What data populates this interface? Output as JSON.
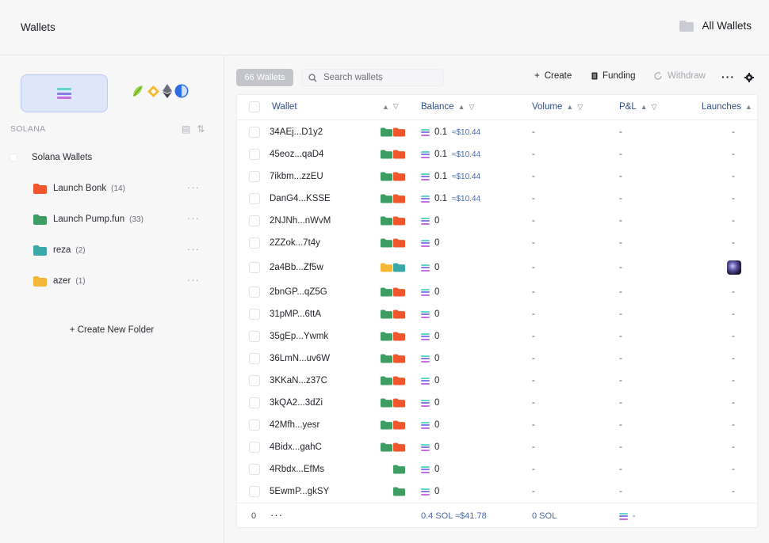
{
  "header": {
    "title": "Wallets",
    "all_wallets": "All Wallets"
  },
  "sidebar": {
    "chain_label": "SOLANA",
    "group_label": "Solana Wallets",
    "folders": [
      {
        "name": "Launch Bonk",
        "count": "(14)",
        "color": "#f0552c"
      },
      {
        "name": "Launch Pump.fun",
        "count": "(33)",
        "color": "#3d9d62"
      },
      {
        "name": "reza",
        "count": "(2)",
        "color": "#3aa7a8"
      },
      {
        "name": "azer",
        "count": "(1)",
        "color": "#f4b73a"
      }
    ],
    "create_folder": "+ Create New Folder"
  },
  "toolbar": {
    "count_badge": "66 Wallets",
    "search_placeholder": "Search wallets",
    "create": "Create",
    "funding": "Funding",
    "withdraw": "Withdraw"
  },
  "table": {
    "columns": {
      "wallet": "Wallet",
      "balance": "Balance",
      "volume": "Volume",
      "pnl": "P&L",
      "launches": "Launches"
    },
    "rows": [
      {
        "wallet": "34AEj...D1y2",
        "folders": [
          "#3d9d62",
          "#f0552c"
        ],
        "balance": "0.1",
        "usd": "≈$10.44",
        "volume": "-",
        "pnl": "-",
        "launches": "-"
      },
      {
        "wallet": "45eoz...qaD4",
        "folders": [
          "#3d9d62",
          "#f0552c"
        ],
        "balance": "0.1",
        "usd": "≈$10.44",
        "volume": "-",
        "pnl": "-",
        "launches": "-"
      },
      {
        "wallet": "7ikbm...zzEU",
        "folders": [
          "#3d9d62",
          "#f0552c"
        ],
        "balance": "0.1",
        "usd": "≈$10.44",
        "volume": "-",
        "pnl": "-",
        "launches": "-"
      },
      {
        "wallet": "DanG4...KSSE",
        "folders": [
          "#3d9d62",
          "#f0552c"
        ],
        "balance": "0.1",
        "usd": "≈$10.44",
        "volume": "-",
        "pnl": "-",
        "launches": "-"
      },
      {
        "wallet": "2NJNh...nWvM",
        "folders": [
          "#3d9d62",
          "#f0552c"
        ],
        "balance": "0",
        "usd": "",
        "volume": "-",
        "pnl": "-",
        "launches": "-"
      },
      {
        "wallet": "2ZZok...7t4y",
        "folders": [
          "#3d9d62",
          "#f0552c"
        ],
        "balance": "0",
        "usd": "",
        "volume": "-",
        "pnl": "-",
        "launches": "-"
      },
      {
        "wallet": "2a4Bb...Zf5w",
        "folders": [
          "#f4b73a",
          "#3aa7a8"
        ],
        "balance": "0",
        "usd": "",
        "volume": "-",
        "pnl": "-",
        "launches": "",
        "launch_image": true
      },
      {
        "wallet": "2bnGP...qZ5G",
        "folders": [
          "#3d9d62",
          "#f0552c"
        ],
        "balance": "0",
        "usd": "",
        "volume": "-",
        "pnl": "-",
        "launches": "-"
      },
      {
        "wallet": "31pMP...6ttA",
        "folders": [
          "#3d9d62",
          "#f0552c"
        ],
        "balance": "0",
        "usd": "",
        "volume": "-",
        "pnl": "-",
        "launches": "-"
      },
      {
        "wallet": "35gEp...Ywmk",
        "folders": [
          "#3d9d62",
          "#f0552c"
        ],
        "balance": "0",
        "usd": "",
        "volume": "-",
        "pnl": "-",
        "launches": "-"
      },
      {
        "wallet": "36LmN...uv6W",
        "folders": [
          "#3d9d62",
          "#f0552c"
        ],
        "balance": "0",
        "usd": "",
        "volume": "-",
        "pnl": "-",
        "launches": "-"
      },
      {
        "wallet": "3KKaN...z37C",
        "folders": [
          "#3d9d62",
          "#f0552c"
        ],
        "balance": "0",
        "usd": "",
        "volume": "-",
        "pnl": "-",
        "launches": "-"
      },
      {
        "wallet": "3kQA2...3dZi",
        "folders": [
          "#3d9d62",
          "#f0552c"
        ],
        "balance": "0",
        "usd": "",
        "volume": "-",
        "pnl": "-",
        "launches": "-"
      },
      {
        "wallet": "42Mfh...yesr",
        "folders": [
          "#3d9d62",
          "#f0552c"
        ],
        "balance": "0",
        "usd": "",
        "volume": "-",
        "pnl": "-",
        "launches": "-"
      },
      {
        "wallet": "4Bidx...gahC",
        "folders": [
          "#3d9d62",
          "#f0552c"
        ],
        "balance": "0",
        "usd": "",
        "volume": "-",
        "pnl": "-",
        "launches": "-"
      },
      {
        "wallet": "4Rbdx...EfMs",
        "folders": [
          "#3d9d62"
        ],
        "balance": "0",
        "usd": "",
        "volume": "-",
        "pnl": "-",
        "launches": "-"
      },
      {
        "wallet": "5EwmP...gkSY",
        "folders": [
          "#3d9d62"
        ],
        "balance": "0",
        "usd": "",
        "volume": "-",
        "pnl": "-",
        "launches": "-"
      }
    ],
    "footer": {
      "selected": "0",
      "balance": "0.4 SOL",
      "usd": "≈$41.78",
      "volume": "0 SOL",
      "pnl": "-"
    }
  },
  "colors": {
    "accent": "#4b68a8",
    "selected_chain_bg": "#dde6fb",
    "badge_bg": "#c3c5cb"
  }
}
